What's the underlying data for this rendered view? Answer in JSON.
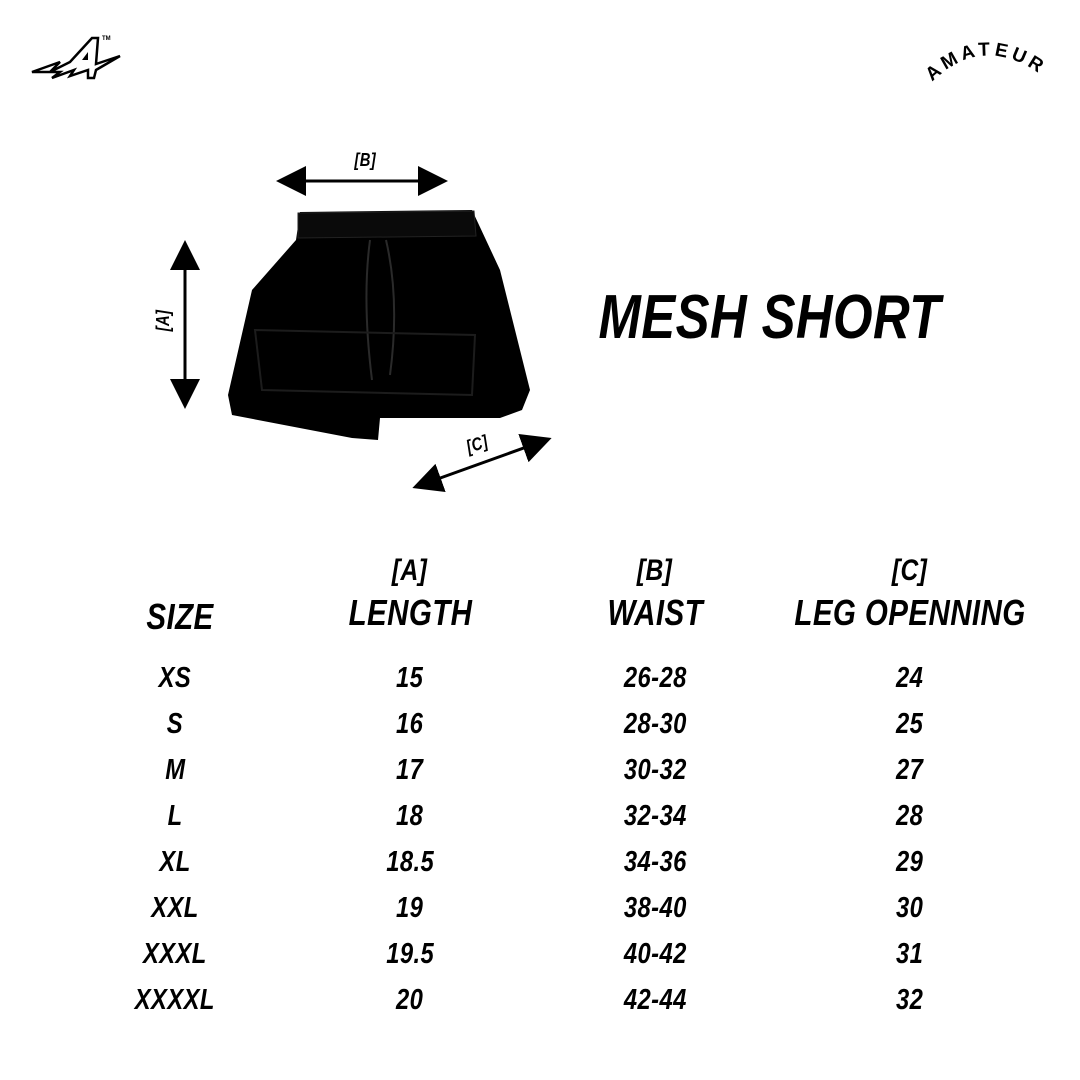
{
  "brand": {
    "logo": "A",
    "trademark": "TM",
    "wordmark": "AMATEUR"
  },
  "product": {
    "title": "MESH SHORT"
  },
  "diagram": {
    "label_a": "[A]",
    "label_b": "[B]",
    "label_c": "[C]"
  },
  "table": {
    "headers": [
      {
        "bracket": "",
        "name": "SIZE"
      },
      {
        "bracket": "[A]",
        "name": "LENGTH"
      },
      {
        "bracket": "[B]",
        "name": "WAIST"
      },
      {
        "bracket": "[C]",
        "name": "LEG OPENNING"
      }
    ],
    "rows": [
      [
        "XS",
        "15",
        "26-28",
        "24"
      ],
      [
        "S",
        "16",
        "28-30",
        "25"
      ],
      [
        "M",
        "17",
        "30-32",
        "27"
      ],
      [
        "L",
        "18",
        "32-34",
        "28"
      ],
      [
        "XL",
        "18.5",
        "34-36",
        "29"
      ],
      [
        "XXL",
        "19",
        "38-40",
        "30"
      ],
      [
        "XXXL",
        "19.5",
        "40-42",
        "31"
      ],
      [
        "XXXXL",
        "20",
        "42-44",
        "32"
      ]
    ]
  }
}
